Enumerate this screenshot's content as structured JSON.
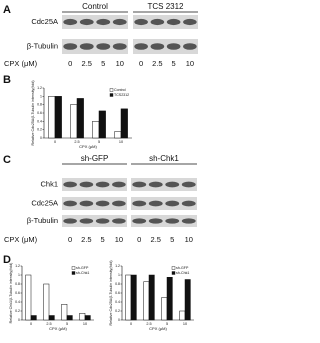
{
  "panels": {
    "A": {
      "label": "A",
      "groups": [
        "Control",
        "TCS 2312"
      ],
      "rows": [
        "Cdc25A",
        "β-Tubulin"
      ],
      "dose_label": "CPX (μM)",
      "doses": [
        "0",
        "2.5",
        "5",
        "10",
        "0",
        "2.5",
        "5",
        "10"
      ]
    },
    "B": {
      "label": "B",
      "chart_data": {
        "type": "bar",
        "y_label": "Relative Cdc25A/β-Tubulin intensity(fold)",
        "x_label": "CPX (μM)",
        "categories": [
          "0",
          "2.5",
          "5",
          "10"
        ],
        "series": [
          {
            "name": "Control",
            "color": "#ffffff",
            "values": [
              1.0,
              0.8,
              0.4,
              0.15
            ]
          },
          {
            "name": "TCS2312",
            "color": "#111111",
            "values": [
              1.0,
              0.95,
              0.65,
              0.7
            ]
          }
        ],
        "ylim": [
          0,
          1.2
        ],
        "yticks": [
          0,
          0.2,
          0.4,
          0.6,
          0.8,
          1,
          1.2
        ]
      }
    },
    "C": {
      "label": "C",
      "groups": [
        "sh-GFP",
        "sh-Chk1"
      ],
      "rows": [
        "Chk1",
        "Cdc25A",
        "β-Tubulin"
      ],
      "dose_label": "CPX (μM)",
      "doses": [
        "0",
        "2.5",
        "5",
        "10",
        "0",
        "2.5",
        "5",
        "10"
      ]
    },
    "D": {
      "label": "D",
      "chart_data": [
        {
          "type": "bar",
          "y_label": "Relative Chk1/β-Tubulin intensity(fold)",
          "x_label": "CPX (μM)",
          "categories": [
            "0",
            "2.5",
            "5",
            "10"
          ],
          "series": [
            {
              "name": "sh-GFP",
              "color": "#ffffff",
              "values": [
                1.0,
                0.8,
                0.35,
                0.15
              ]
            },
            {
              "name": "sh-Chk1",
              "color": "#111111",
              "values": [
                0.1,
                0.1,
                0.1,
                0.1
              ]
            }
          ],
          "ylim": [
            0,
            1.2
          ],
          "yticks": [
            0,
            0.2,
            0.4,
            0.6,
            0.8,
            1,
            1.2
          ]
        },
        {
          "type": "bar",
          "y_label": "Relative Cdc25A/β-Tubulin intensity(fold)",
          "x_label": "CPX (μM)",
          "categories": [
            "0",
            "2.5",
            "5",
            "10"
          ],
          "series": [
            {
              "name": "sh-GFP",
              "color": "#ffffff",
              "values": [
                1.0,
                0.85,
                0.5,
                0.2
              ]
            },
            {
              "name": "sh-Chk1",
              "color": "#111111",
              "values": [
                1.0,
                1.0,
                0.95,
                0.9
              ]
            }
          ],
          "ylim": [
            0,
            1.2
          ],
          "yticks": [
            0,
            0.2,
            0.4,
            0.6,
            0.8,
            1,
            1.2
          ]
        }
      ]
    }
  }
}
